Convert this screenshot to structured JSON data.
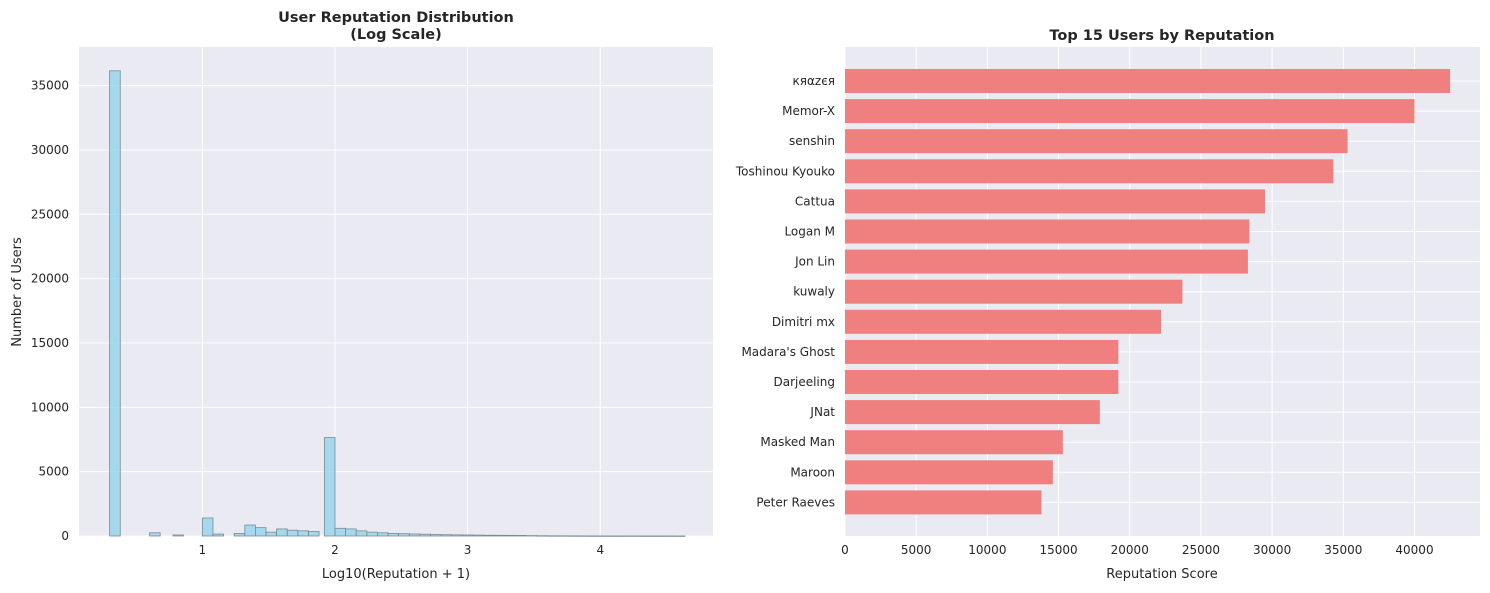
{
  "chart_data": [
    {
      "type": "bar",
      "subtype": "histogram",
      "title": "User Reputation Distribution\n(Log Scale)",
      "xlabel": "Log10(Reputation + 1)",
      "ylabel": "Number of Users",
      "xlim": [
        0.07,
        4.85
      ],
      "ylim": [
        0,
        38000
      ],
      "xticks": [
        1,
        2,
        3,
        4
      ],
      "yticks": [
        0,
        5000,
        10000,
        15000,
        20000,
        25000,
        30000,
        35000
      ],
      "grid": true,
      "color": "#87CEEB",
      "edge_color": "#7a8a96",
      "bins": [
        {
          "x": 0.301,
          "width": 0.08,
          "count": 36150
        },
        {
          "x": 0.602,
          "width": 0.08,
          "count": 250
        },
        {
          "x": 0.778,
          "width": 0.08,
          "count": 80
        },
        {
          "x": 1.0,
          "width": 0.08,
          "count": 1400
        },
        {
          "x": 1.08,
          "width": 0.08,
          "count": 150
        },
        {
          "x": 1.24,
          "width": 0.08,
          "count": 200
        },
        {
          "x": 1.32,
          "width": 0.08,
          "count": 850
        },
        {
          "x": 1.4,
          "width": 0.08,
          "count": 650
        },
        {
          "x": 1.48,
          "width": 0.08,
          "count": 300
        },
        {
          "x": 1.56,
          "width": 0.08,
          "count": 550
        },
        {
          "x": 1.64,
          "width": 0.08,
          "count": 450
        },
        {
          "x": 1.72,
          "width": 0.08,
          "count": 400
        },
        {
          "x": 1.8,
          "width": 0.08,
          "count": 350
        },
        {
          "x": 1.92,
          "width": 0.08,
          "count": 7650
        },
        {
          "x": 2.0,
          "width": 0.08,
          "count": 600
        },
        {
          "x": 2.08,
          "width": 0.08,
          "count": 550
        },
        {
          "x": 2.16,
          "width": 0.08,
          "count": 400
        },
        {
          "x": 2.24,
          "width": 0.08,
          "count": 300
        },
        {
          "x": 2.32,
          "width": 0.08,
          "count": 250
        },
        {
          "x": 2.4,
          "width": 0.08,
          "count": 200
        },
        {
          "x": 2.48,
          "width": 0.08,
          "count": 180
        },
        {
          "x": 2.56,
          "width": 0.08,
          "count": 160
        },
        {
          "x": 2.64,
          "width": 0.08,
          "count": 140
        },
        {
          "x": 2.72,
          "width": 0.08,
          "count": 110
        },
        {
          "x": 2.8,
          "width": 0.08,
          "count": 100
        },
        {
          "x": 2.88,
          "width": 0.08,
          "count": 90
        },
        {
          "x": 2.96,
          "width": 0.08,
          "count": 80
        },
        {
          "x": 3.04,
          "width": 0.08,
          "count": 70
        },
        {
          "x": 3.12,
          "width": 0.08,
          "count": 60
        },
        {
          "x": 3.2,
          "width": 0.08,
          "count": 55
        },
        {
          "x": 3.28,
          "width": 0.08,
          "count": 50
        },
        {
          "x": 3.36,
          "width": 0.08,
          "count": 45
        },
        {
          "x": 3.44,
          "width": 0.08,
          "count": 30
        },
        {
          "x": 3.52,
          "width": 0.08,
          "count": 20
        },
        {
          "x": 3.6,
          "width": 0.08,
          "count": 15
        },
        {
          "x": 3.68,
          "width": 0.08,
          "count": 12
        },
        {
          "x": 3.76,
          "width": 0.08,
          "count": 10
        },
        {
          "x": 3.84,
          "width": 0.08,
          "count": 8
        },
        {
          "x": 3.92,
          "width": 0.08,
          "count": 6
        },
        {
          "x": 4.0,
          "width": 0.08,
          "count": 5
        },
        {
          "x": 4.08,
          "width": 0.08,
          "count": 4
        },
        {
          "x": 4.16,
          "width": 0.08,
          "count": 3
        },
        {
          "x": 4.24,
          "width": 0.08,
          "count": 3
        },
        {
          "x": 4.32,
          "width": 0.08,
          "count": 2
        },
        {
          "x": 4.4,
          "width": 0.08,
          "count": 2
        },
        {
          "x": 4.48,
          "width": 0.08,
          "count": 2
        },
        {
          "x": 4.56,
          "width": 0.08,
          "count": 1
        }
      ]
    },
    {
      "type": "bar",
      "orientation": "horizontal",
      "title": "Top 15 Users by Reputation",
      "xlabel": "Reputation Score",
      "ylabel": "",
      "xlim": [
        0,
        44600
      ],
      "xticks": [
        0,
        5000,
        10000,
        15000,
        20000,
        25000,
        30000,
        35000,
        40000
      ],
      "grid": true,
      "color": "#F08080",
      "categories": [
        "кяαzєя",
        "Memor-X",
        "senshin",
        "Toshinou Kyouko",
        "Cattua",
        "Logan M",
        "Jon Lin",
        "kuwaly",
        "Dimitri mx",
        "Madara's Ghost",
        "Darjeeling",
        "JNat",
        "Masked Man",
        "Maroon",
        "Peter Raeves"
      ],
      "values": [
        42500,
        40000,
        35300,
        34300,
        29500,
        28400,
        28300,
        23700,
        22200,
        19200,
        19200,
        17900,
        15300,
        14600,
        13800
      ]
    }
  ]
}
